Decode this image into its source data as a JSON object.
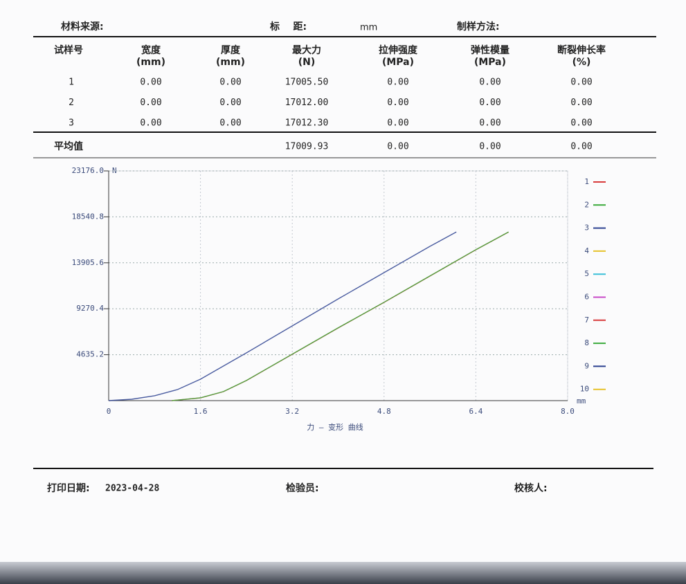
{
  "header": {
    "material_source": "材料来源:",
    "gauge_length": "标    距:",
    "gauge_unit": "mm",
    "prep_method": "制样方法:"
  },
  "table": {
    "columns": [
      {
        "name": "试样号"
      },
      {
        "name": "宽度",
        "unit": "(mm)"
      },
      {
        "name": "厚度",
        "unit": "(mm)"
      },
      {
        "name": "最大力",
        "unit": "(N)"
      },
      {
        "name": "拉伸强度",
        "unit": "(MPa)"
      },
      {
        "name": "弹性模量",
        "unit": "(MPa)"
      },
      {
        "name": "断裂伸长率",
        "unit": "(%)"
      }
    ],
    "rows": [
      [
        "1",
        "0.00",
        "0.00",
        "17005.50",
        "0.00",
        "0.00",
        "0.00"
      ],
      [
        "2",
        "0.00",
        "0.00",
        "17012.00",
        "0.00",
        "0.00",
        "0.00"
      ],
      [
        "3",
        "0.00",
        "0.00",
        "17012.30",
        "0.00",
        "0.00",
        "0.00"
      ]
    ],
    "average": {
      "label": "平均值",
      "values": [
        "17009.93",
        "0.00",
        "0.00",
        "0.00"
      ]
    }
  },
  "chart_data": {
    "type": "line",
    "xlabel": "力 — 变形 曲线",
    "y_unit": "N",
    "x_unit": "mm",
    "xlim": [
      0,
      8
    ],
    "ylim": [
      0,
      23176
    ],
    "xticks": [
      0,
      1.6,
      3.2,
      4.8,
      6.4,
      {
        "value": 8,
        "label": "8.0"
      }
    ],
    "yticks": [
      4635.2,
      9270.4,
      13905.6,
      18540.8,
      {
        "value": 23176,
        "label": "23176.0"
      }
    ],
    "grid": true,
    "series": [
      {
        "name": "1",
        "color": "#d83a3a",
        "x": [
          1.1,
          1.6,
          2.0,
          2.4,
          3.2,
          4.0,
          4.8,
          5.6,
          6.4,
          6.97
        ],
        "values": [
          0,
          279,
          907,
          2024,
          4676,
          7330,
          9912,
          12566,
          15219,
          17005.5
        ]
      },
      {
        "name": "2",
        "color": "#3aaa3a",
        "x": [
          1.1,
          1.6,
          2.0,
          2.4,
          3.2,
          4.0,
          4.8,
          5.6,
          6.4,
          6.97
        ],
        "values": [
          0,
          285,
          915,
          2035,
          4690,
          7345,
          9925,
          12580,
          15230,
          17012
        ]
      },
      {
        "name": "3",
        "color": "#2a3f8f",
        "x": [
          0,
          0.4,
          0.8,
          1.2,
          1.6,
          2.4,
          3.2,
          4.0,
          4.8,
          5.6,
          6.06
        ],
        "values": [
          0,
          140,
          490,
          1117,
          2164,
          4817,
          7540,
          10262,
          12914,
          15566,
          17012.3
        ]
      },
      {
        "name": "4",
        "color": "#e6c22a"
      },
      {
        "name": "5",
        "color": "#3ac0d8"
      },
      {
        "name": "6",
        "color": "#c84ac8"
      },
      {
        "name": "7",
        "color": "#d83a3a"
      },
      {
        "name": "8",
        "color": "#3aaa3a"
      },
      {
        "name": "9",
        "color": "#2a3f8f"
      },
      {
        "name": "10",
        "color": "#e6c22a"
      }
    ]
  },
  "footer": {
    "print_date_label": "打印日期:",
    "print_date": "2023-04-28",
    "inspector": "检验员:",
    "checker": "校核人:"
  }
}
